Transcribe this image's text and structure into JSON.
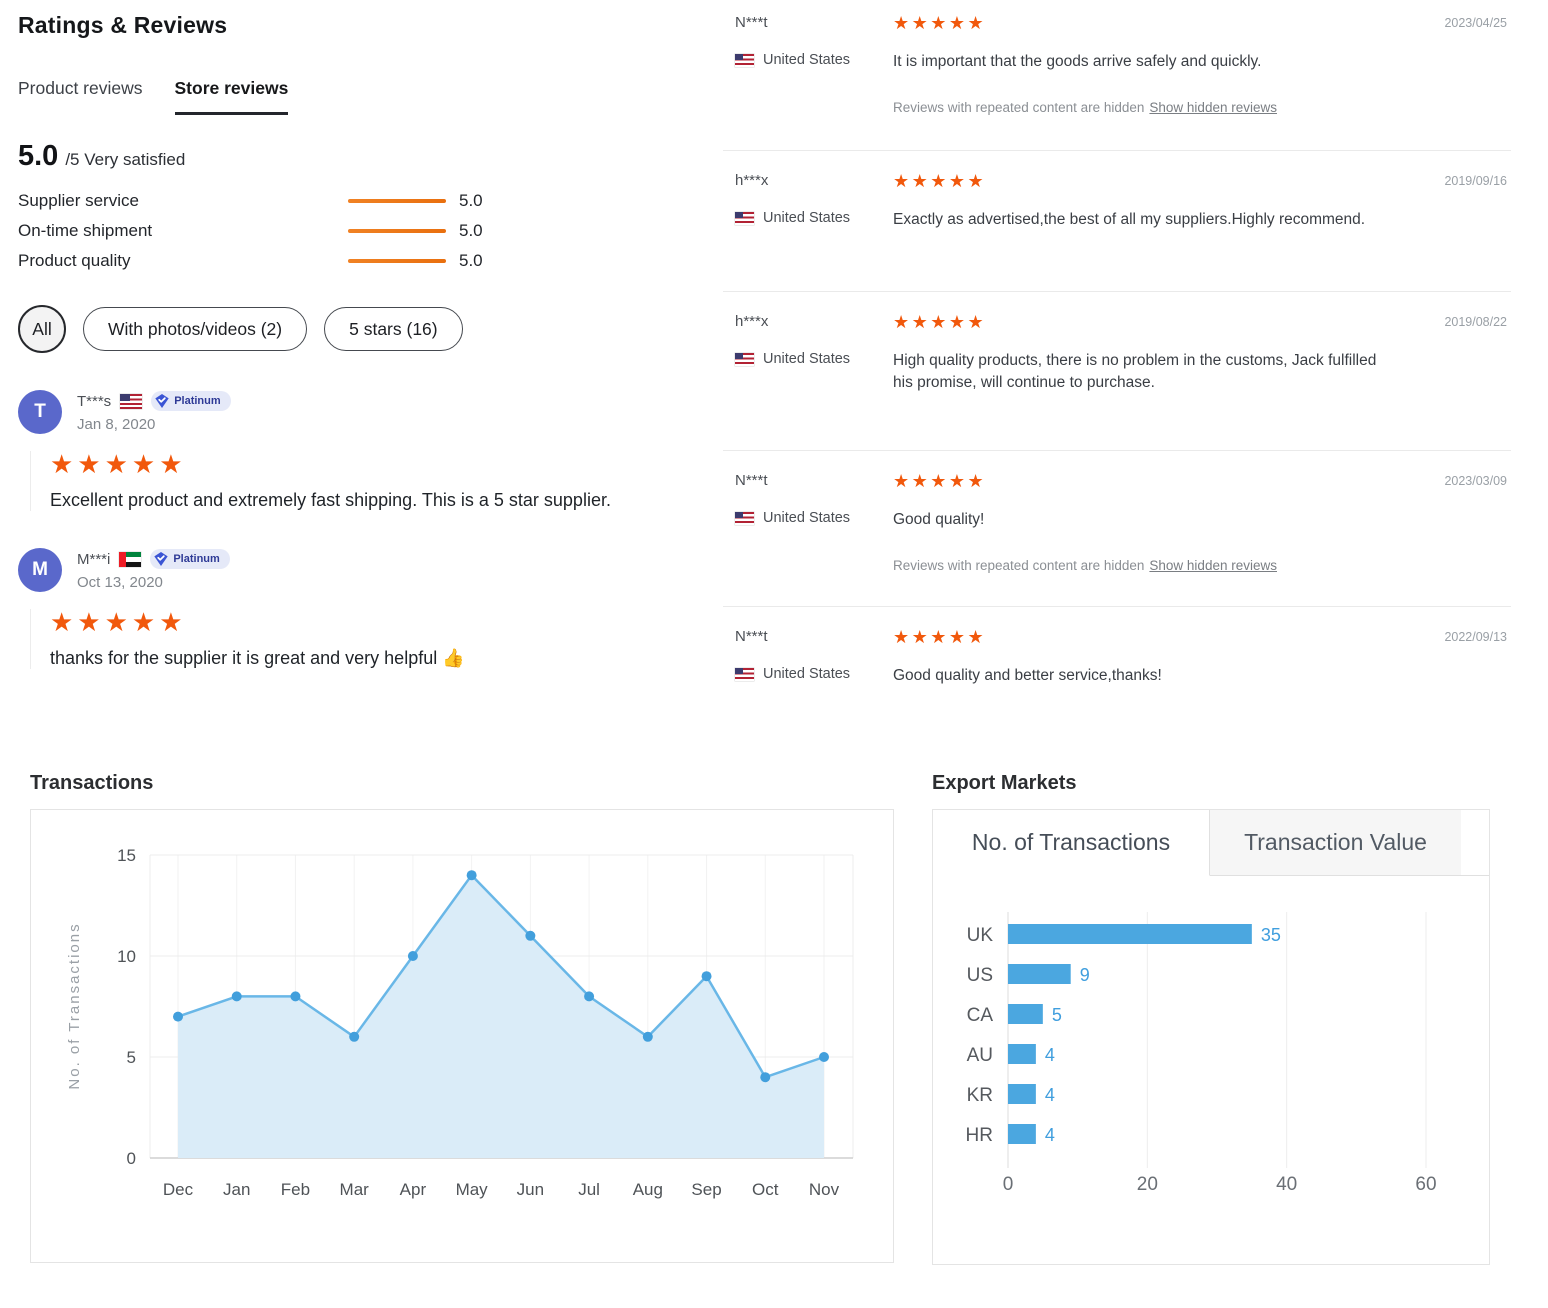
{
  "header": {
    "title": "Ratings & Reviews",
    "tabs": [
      {
        "label": "Product reviews",
        "active": false
      },
      {
        "label": "Store reviews",
        "active": true
      }
    ]
  },
  "summary": {
    "score": "5.0",
    "suffix": "/5 Very satisfied",
    "metrics": [
      {
        "label": "Supplier service",
        "value": "5.0"
      },
      {
        "label": "On-time shipment",
        "value": "5.0"
      },
      {
        "label": "Product quality",
        "value": "5.0"
      }
    ]
  },
  "filters": [
    {
      "label": "All",
      "selected": true
    },
    {
      "label": "With photos/videos (2)",
      "selected": false
    },
    {
      "label": "5 stars (16)",
      "selected": false
    }
  ],
  "left_reviews": [
    {
      "initial": "T",
      "name": "T***s",
      "flag": "us",
      "badge": "Platinum",
      "date": "Jan 8, 2020",
      "stars": 5,
      "text": "Excellent product and extremely fast shipping. This is a 5 star supplier."
    },
    {
      "initial": "M",
      "name": "M***i",
      "flag": "ae",
      "badge": "Platinum",
      "date": "Oct 13, 2020",
      "stars": 5,
      "text": "thanks for the supplier it is great and very helpful 👍"
    }
  ],
  "right_reviews": [
    {
      "name": "N***t",
      "country": "United States",
      "flag": "us",
      "date": "2023/04/25",
      "stars": 5,
      "text": "It is important that the goods arrive safely and quickly.",
      "note": "Reviews with repeated content are hidden",
      "note_link": "Show hidden reviews"
    },
    {
      "name": "h***x",
      "country": "United States",
      "flag": "us",
      "date": "2019/09/16",
      "stars": 5,
      "text": "Exactly as advertised,the best of all my suppliers.Highly recommend."
    },
    {
      "name": "h***x",
      "country": "United States",
      "flag": "us",
      "date": "2019/08/22",
      "stars": 5,
      "text": "High quality products, there is no problem in the customs, Jack fulfilled his promise, will continue to purchase."
    },
    {
      "name": "N***t",
      "country": "United States",
      "flag": "us",
      "date": "2023/03/09",
      "stars": 5,
      "text": "Good quality!",
      "note": "Reviews with repeated content are hidden",
      "note_link": "Show hidden reviews"
    },
    {
      "name": "N***t",
      "country": "United States",
      "flag": "us",
      "date": "2022/09/13",
      "stars": 5,
      "text": "Good quality and better service,thanks!"
    }
  ],
  "chart_data": [
    {
      "type": "line",
      "title": "Transactions",
      "categories": [
        "Dec",
        "Jan",
        "Feb",
        "Mar",
        "Apr",
        "May",
        "Jun",
        "Jul",
        "Aug",
        "Sep",
        "Oct",
        "Nov"
      ],
      "values": [
        7,
        8,
        8,
        6,
        10,
        14,
        11,
        8,
        6,
        9,
        4,
        5
      ],
      "xlabel": "",
      "ylabel": "No. of Transactions",
      "ylim": [
        0,
        15
      ],
      "yticks": [
        0,
        5,
        10,
        15
      ],
      "grid": true,
      "legend": "none",
      "area_fill": true
    },
    {
      "type": "bar",
      "title": "Export Markets",
      "orientation": "horizontal",
      "tabs": [
        "No. of Transactions",
        "Transaction Value"
      ],
      "active_tab": "No. of Transactions",
      "categories": [
        "UK",
        "US",
        "CA",
        "AU",
        "KR",
        "HR"
      ],
      "values": [
        35,
        9,
        5,
        4,
        4,
        4
      ],
      "xticks": [
        0,
        20,
        40,
        60
      ],
      "xlim": [
        0,
        60
      ],
      "grid": true,
      "legend": "none"
    }
  ],
  "colors": {
    "star_orange": "#f1580c",
    "bar_orange": "#ed7a16",
    "chart_blue": "#4ba7e0",
    "chart_blue_dark": "#429fdc",
    "chart_line": "#69b7e7",
    "chart_area": "#daecf8",
    "value_label_blue": "#3f9ede",
    "avatar_blue": "#5a68cb"
  }
}
